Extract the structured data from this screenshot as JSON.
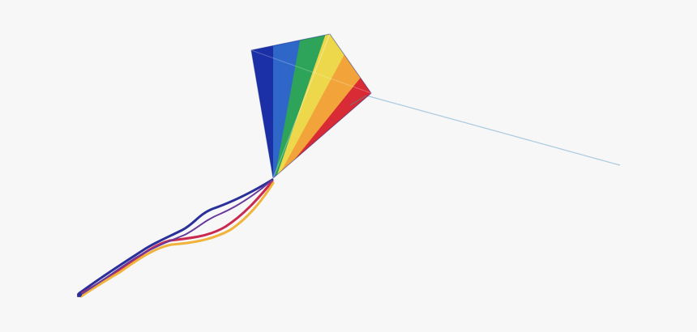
{
  "scene": {
    "background_color": "#f7f7f7",
    "subject": "rainbow-kite",
    "kite_colors": {
      "blue": "#1b2fa6",
      "light_blue": "#2f67c9",
      "green": "#2ea35a",
      "yellow": "#ecd84a",
      "orange": "#f2a43a",
      "red": "#d92b35"
    },
    "string_color": "#a9c9df",
    "tail_colors": [
      "#2a2f9a",
      "#c92a4f",
      "#f0b33c",
      "#6a3a9a"
    ]
  }
}
